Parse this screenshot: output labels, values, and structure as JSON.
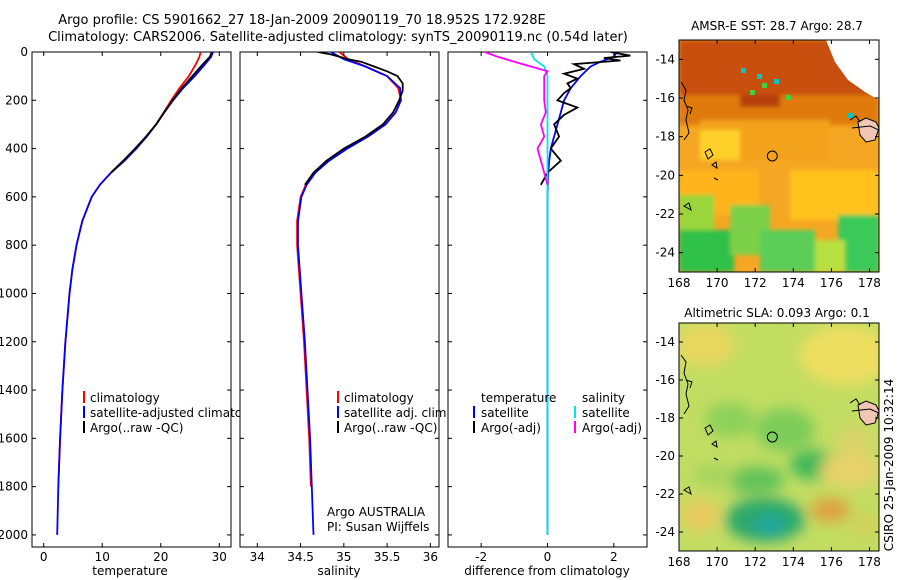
{
  "title_line1": "Argo profile: CS 5901662_27 18-Jan-2009 20090119_70 18.952S 172.928E",
  "title_line2": "Climatology: CARS2006. Satellite-adjusted climatology: synTS_20090119.nc (0.54d later)",
  "footer_stamp": "CSIRO 25-Jan-2009 10:32:14",
  "credit_line1": "Argo AUSTRALIA",
  "credit_line2": "PI: Susan Wijffels",
  "colors": {
    "climatology": "#ff0000",
    "satellite": "#0000ff",
    "argo": "#000000",
    "sat_diff": "#00e6e6",
    "argo_salt_diff": "#ff00ff"
  },
  "chart_data": [
    {
      "type": "line",
      "id": "temperature",
      "xlabel": "temperature",
      "ylabel": "",
      "xlim": [
        -2,
        32
      ],
      "ylim": [
        2050,
        0
      ],
      "xticks": [
        0,
        10,
        20,
        30
      ],
      "yticks": [
        0,
        200,
        400,
        600,
        800,
        1000,
        1200,
        1400,
        1600,
        1800,
        2000
      ],
      "legend": [
        "climatology",
        "satellite-adjusted climatology",
        "Argo(..raw -QC)"
      ],
      "series": [
        {
          "name": "climatology",
          "depth": [
            0,
            20,
            50,
            100,
            150,
            200,
            250,
            300,
            350,
            400,
            450,
            500,
            550,
            600,
            700,
            800,
            900,
            1000,
            1200,
            1400,
            1600,
            1800
          ],
          "values": [
            26.8,
            26.6,
            26.0,
            24.8,
            23.2,
            21.8,
            20.5,
            19.2,
            17.6,
            15.8,
            13.8,
            11.5,
            9.6,
            8.2,
            6.6,
            5.6,
            4.9,
            4.4,
            3.7,
            3.2,
            2.8,
            2.5
          ]
        },
        {
          "name": "satellite-adjusted climatology",
          "depth": [
            0,
            20,
            50,
            100,
            150,
            200,
            250,
            300,
            350,
            400,
            450,
            500,
            550,
            600,
            700,
            800,
            900,
            1000,
            1200,
            1400,
            1600,
            1800,
            2000
          ],
          "values": [
            28.9,
            28.6,
            27.6,
            25.8,
            23.8,
            22.1,
            20.6,
            19.2,
            17.6,
            15.8,
            13.8,
            11.5,
            9.6,
            8.2,
            6.6,
            5.6,
            4.9,
            4.4,
            3.7,
            3.2,
            2.8,
            2.5,
            2.3
          ]
        },
        {
          "name": "Argo(..raw -QC)",
          "depth": [
            0,
            20,
            50,
            100,
            150,
            200,
            250,
            300,
            350,
            400,
            450,
            500
          ],
          "values": [
            28.7,
            28.4,
            27.2,
            25.4,
            23.6,
            22.0,
            20.6,
            19.2,
            17.5,
            15.6,
            13.6,
            11.5
          ]
        }
      ]
    },
    {
      "type": "line",
      "id": "salinity",
      "xlabel": "salinity",
      "ylabel": "",
      "xlim": [
        33.8,
        36.1
      ],
      "ylim": [
        2050,
        0
      ],
      "xticks": [
        34,
        34.5,
        35,
        35.5,
        36
      ],
      "legend": [
        "climatology",
        "satellite adj. clim.",
        "Argo(..raw -QC)"
      ],
      "series": [
        {
          "name": "climatology",
          "depth": [
            0,
            30,
            60,
            100,
            150,
            200,
            250,
            300,
            350,
            400,
            450,
            500,
            550,
            600,
            700,
            800,
            1000,
            1200,
            1400,
            1600,
            1800
          ],
          "values": [
            34.95,
            35.05,
            35.25,
            35.5,
            35.63,
            35.66,
            35.6,
            35.48,
            35.28,
            35.03,
            34.82,
            34.66,
            34.56,
            34.5,
            34.46,
            34.46,
            34.5,
            34.54,
            34.57,
            34.6,
            34.62
          ]
        },
        {
          "name": "satellite adj. clim.",
          "depth": [
            0,
            30,
            60,
            100,
            150,
            200,
            250,
            300,
            350,
            400,
            450,
            500,
            550,
            600,
            700,
            800,
            1000,
            1200,
            1400,
            1600,
            1800,
            2000
          ],
          "values": [
            34.85,
            35.0,
            35.25,
            35.5,
            35.65,
            35.66,
            35.6,
            35.48,
            35.28,
            35.04,
            34.83,
            34.67,
            34.57,
            34.51,
            34.47,
            34.47,
            34.51,
            34.55,
            34.58,
            34.61,
            34.63,
            34.65
          ]
        },
        {
          "name": "Argo(..raw -QC)",
          "depth": [
            0,
            10,
            20,
            30,
            40,
            60,
            80,
            100,
            130,
            160,
            200,
            250,
            300,
            350,
            400,
            450,
            500,
            550
          ],
          "values": [
            34.7,
            34.85,
            34.95,
            35.05,
            35.2,
            35.35,
            35.5,
            35.62,
            35.68,
            35.68,
            35.64,
            35.57,
            35.45,
            35.25,
            35.0,
            34.8,
            34.65,
            34.55
          ]
        }
      ]
    },
    {
      "type": "line",
      "id": "difference",
      "xlabel": "difference from climatology",
      "ylabel": "",
      "xlim": [
        -3,
        3
      ],
      "ylim": [
        2050,
        0
      ],
      "xticks": [
        -2,
        0,
        2
      ],
      "legend_temperature": {
        "heading": "temperature",
        "items": [
          "satellite",
          "Argo(-adj)"
        ]
      },
      "legend_salinity": {
        "heading": "salinity",
        "items": [
          "satellite",
          "Argo(-adj)"
        ]
      },
      "series": [
        {
          "name": "temperature satellite",
          "depth": [
            0,
            20,
            40,
            60,
            100,
            150,
            200,
            250,
            300,
            350,
            400,
            450,
            500,
            600,
            800,
            1000,
            1500,
            2000
          ],
          "values": [
            2.1,
            2.0,
            1.6,
            1.3,
            1.0,
            0.7,
            0.5,
            0.4,
            0.3,
            0.2,
            0.1,
            0.05,
            0.02,
            0.0,
            0.0,
            0.0,
            0.0,
            0.0
          ]
        },
        {
          "name": "temperature Argo(-adj)",
          "depth": [
            0,
            15,
            25,
            35,
            50,
            70,
            90,
            110,
            130,
            150,
            170,
            200,
            230,
            260,
            300,
            350,
            400,
            450,
            500,
            550
          ],
          "values": [
            1.9,
            2.5,
            1.7,
            2.2,
            0.8,
            1.1,
            0.5,
            0.9,
            0.6,
            0.7,
            0.5,
            0.3,
            0.9,
            0.5,
            0.2,
            0.35,
            0.1,
            0.4,
            0.0,
            -0.2
          ]
        },
        {
          "name": "salinity satellite",
          "depth": [
            0,
            30,
            60,
            100,
            150,
            200,
            300,
            400,
            500,
            700,
            1000,
            1500,
            2000
          ],
          "values": [
            -0.5,
            -0.4,
            -0.1,
            0.0,
            0.0,
            0.0,
            0.0,
            0.0,
            0.0,
            0.0,
            0.0,
            0.0,
            0.0
          ]
        },
        {
          "name": "salinity Argo(-adj)",
          "depth": [
            0,
            20,
            40,
            60,
            80,
            100,
            150,
            200,
            250,
            300,
            350,
            400,
            450,
            500,
            550
          ],
          "values": [
            -1.9,
            -1.5,
            -1.0,
            -0.5,
            0.0,
            -0.1,
            -0.1,
            -0.1,
            -0.05,
            -0.2,
            -0.1,
            -0.3,
            -0.2,
            -0.1,
            0.0
          ]
        }
      ]
    },
    {
      "type": "heatmap",
      "id": "sst_map",
      "title": "AMSR-E SST: 28.7 Argo: 28.7",
      "x": [
        168,
        178.5
      ],
      "y": [
        -25,
        -13
      ],
      "xticks": [
        168,
        170,
        172,
        174,
        176,
        178
      ],
      "yticks": [
        -14,
        -16,
        -18,
        -20,
        -22,
        -24
      ],
      "float_position": [
        172.9,
        -19.0
      ]
    },
    {
      "type": "heatmap",
      "id": "sla_map",
      "title": "Altimetric SLA: 0.093 Argo: 0.1",
      "x": [
        168,
        178.5
      ],
      "y": [
        -25,
        -13
      ],
      "xticks": [
        168,
        170,
        172,
        174,
        176,
        178
      ],
      "yticks": [
        -14,
        -16,
        -18,
        -20,
        -22,
        -24
      ],
      "float_position": [
        172.9,
        -19.0
      ]
    }
  ]
}
